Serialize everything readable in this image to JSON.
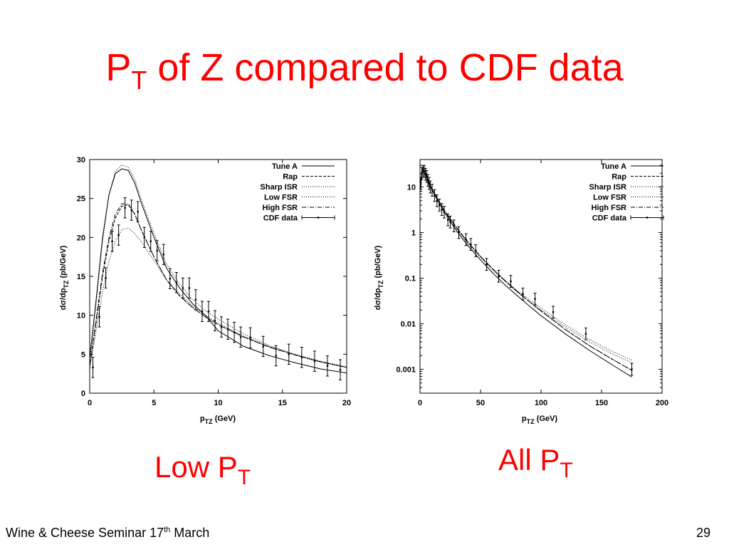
{
  "slide": {
    "title_main": "P",
    "title_sub": "T",
    "title_rest": " of Z compared to CDF data",
    "left_caption_main": "Low P",
    "left_caption_sub": "T",
    "right_caption_main": "All P",
    "right_caption_sub": "T",
    "footer_text": "Wine & Cheese Seminar 17",
    "footer_sup": "th",
    "footer_after": "  March",
    "page_number": "29",
    "title_color": "#ff0000"
  },
  "chart_data": [
    {
      "type": "line",
      "xlabel_main": "p",
      "xlabel_sub": "TZ",
      "xlabel_units": " (GeV)",
      "ylabel_main": "dσ/dp",
      "ylabel_sub": "TZ",
      "ylabel_units": " (pb/GeV)",
      "xlim": [
        0,
        20
      ],
      "ylim": [
        0,
        30
      ],
      "yscale": "linear",
      "xticks": [
        0,
        5,
        10,
        15,
        20
      ],
      "yticks": [
        0,
        5,
        10,
        15,
        20,
        25,
        30
      ],
      "grid": false,
      "legend_position": "top-right",
      "series": [
        {
          "name": "Tune A",
          "style": "solid",
          "x": [
            0,
            0.5,
            1,
            1.5,
            2,
            2.5,
            3,
            3.5,
            4,
            5,
            6,
            7,
            8,
            9,
            10,
            12,
            14,
            16,
            18,
            20
          ],
          "y": [
            4.5,
            12,
            20,
            25.5,
            28.2,
            28.8,
            28.6,
            27,
            24.5,
            20,
            16,
            13.5,
            11.5,
            10,
            8,
            6,
            4.8,
            3.9,
            3.1,
            2.6
          ]
        },
        {
          "name": "Rap",
          "style": "dashed",
          "x": [
            0,
            0.5,
            1,
            1.5,
            2,
            2.5,
            3,
            3.5,
            4,
            5,
            6,
            7,
            8,
            9,
            10,
            12,
            14,
            16,
            18,
            20
          ],
          "y": [
            3.5,
            9,
            15,
            19.5,
            22.5,
            24,
            24.2,
            23,
            21,
            17.5,
            14.5,
            12.5,
            11,
            9.8,
            8.8,
            7.2,
            5.9,
            4.9,
            4,
            3.3
          ]
        },
        {
          "name": "Sharp ISR",
          "style": "dotted",
          "x": [
            0,
            0.5,
            1,
            1.5,
            2,
            2.5,
            3,
            3.5,
            4,
            5,
            6,
            7,
            8,
            9,
            10,
            12,
            14,
            16,
            18,
            20
          ],
          "y": [
            4.2,
            11.5,
            19.5,
            25.5,
            28.5,
            29.3,
            29,
            27.5,
            25,
            20.5,
            16.5,
            14,
            12,
            10.6,
            9.5,
            7.6,
            6.1,
            5,
            4.1,
            3.4
          ]
        },
        {
          "name": "Low FSR",
          "style": "dotted",
          "x": [
            0,
            0.5,
            1,
            1.5,
            2,
            2.5,
            3,
            3.5,
            4,
            5,
            6,
            7,
            8,
            9,
            10,
            12,
            14,
            16,
            18,
            20
          ],
          "y": [
            3,
            8,
            13,
            17,
            19.5,
            21,
            21.2,
            20.5,
            19.5,
            17,
            14.5,
            12.8,
            11.2,
            10,
            9,
            7.3,
            6,
            4.9,
            4,
            3.3
          ]
        },
        {
          "name": "High FSR",
          "style": "dashdot",
          "x": [
            0,
            0.5,
            1,
            1.5,
            2,
            2.5,
            3,
            3.5,
            4,
            5,
            6,
            7,
            8,
            9,
            10,
            12,
            14,
            16,
            18,
            20
          ],
          "y": [
            3.6,
            9.5,
            15.5,
            20,
            23,
            24.3,
            24.3,
            23,
            21,
            17.5,
            14.5,
            12.5,
            11,
            9.8,
            8.8,
            7.2,
            5.9,
            4.9,
            4,
            3.3
          ]
        },
        {
          "name": "CDF data",
          "style": "points",
          "x": [
            0.25,
            0.75,
            1.25,
            1.75,
            2.25,
            2.75,
            3.25,
            3.75,
            4.25,
            4.75,
            5.25,
            5.75,
            6.25,
            6.75,
            7.25,
            7.75,
            8.25,
            8.75,
            9.25,
            9.75,
            10.25,
            10.75,
            11.25,
            11.75,
            12.5,
            13.5,
            14.5,
            15.5,
            16.5,
            17.5,
            18.5,
            19.5
          ],
          "y": [
            3.3,
            9.8,
            14.8,
            19.5,
            20.3,
            23.8,
            23.5,
            23.3,
            20,
            19.5,
            18.3,
            17.8,
            14.7,
            14.2,
            13.5,
            13.5,
            12,
            10.5,
            10.5,
            9.3,
            8.5,
            8.2,
            7.8,
            7.2,
            7.1,
            6,
            4.8,
            5,
            4.6,
            4.1,
            3.5,
            3
          ]
        }
      ]
    },
    {
      "type": "line",
      "xlabel_main": "p",
      "xlabel_sub": "TZ",
      "xlabel_units": " (GeV)",
      "ylabel_main": "dσ/dp",
      "ylabel_sub": "TZ",
      "ylabel_units": " (pb/GeV)",
      "xlim": [
        0,
        200
      ],
      "ylim": [
        0.0003,
        40
      ],
      "yscale": "log",
      "xticks": [
        0,
        50,
        100,
        150,
        200
      ],
      "yticks": [
        0.001,
        0.01,
        0.1,
        1,
        10
      ],
      "ytick_labels": [
        "0.001",
        "0.01",
        "0.1",
        "1",
        "10"
      ],
      "grid": false,
      "legend_position": "top-right",
      "series": [
        {
          "name": "Tune A",
          "style": "solid",
          "x": [
            0.5,
            1.5,
            2.5,
            4,
            6,
            10,
            15,
            20,
            30,
            40,
            50,
            60,
            70,
            80,
            90,
            100,
            120,
            140,
            160,
            175
          ],
          "y": [
            10,
            22,
            27,
            22,
            15,
            8.5,
            4.8,
            2.8,
            1.1,
            0.5,
            0.25,
            0.13,
            0.072,
            0.042,
            0.025,
            0.015,
            0.006,
            0.0026,
            0.0012,
            0.00068
          ]
        },
        {
          "name": "Rap",
          "style": "dashed",
          "x": [
            0.5,
            1.5,
            2.5,
            4,
            6,
            10,
            15,
            20,
            30,
            40,
            50,
            60,
            70,
            80,
            90,
            100,
            120,
            140,
            160,
            175
          ],
          "y": [
            9,
            20,
            24,
            21,
            15,
            9,
            5.2,
            3.1,
            1.3,
            0.6,
            0.3,
            0.16,
            0.09,
            0.052,
            0.031,
            0.019,
            0.0075,
            0.0033,
            0.0016,
            0.00095
          ]
        },
        {
          "name": "Sharp ISR",
          "style": "dotted",
          "x": [
            0.5,
            1.5,
            2.5,
            4,
            6,
            10,
            15,
            20,
            30,
            40,
            50,
            60,
            70,
            80,
            90,
            100,
            120,
            140,
            160,
            175
          ],
          "y": [
            10,
            22,
            28,
            23,
            16,
            9,
            5,
            3,
            1.2,
            0.55,
            0.28,
            0.15,
            0.085,
            0.05,
            0.031,
            0.02,
            0.0085,
            0.004,
            0.0021,
            0.0014
          ]
        },
        {
          "name": "Low FSR",
          "style": "dotted",
          "x": [
            0.5,
            1.5,
            2.5,
            4,
            6,
            10,
            15,
            20,
            30,
            40,
            50,
            60,
            70,
            80,
            90,
            100,
            120,
            140,
            160,
            175
          ],
          "y": [
            8,
            17,
            21,
            19,
            14,
            8.5,
            5,
            3,
            1.25,
            0.58,
            0.3,
            0.16,
            0.09,
            0.054,
            0.034,
            0.022,
            0.0095,
            0.0045,
            0.0024,
            0.0016
          ]
        },
        {
          "name": "High FSR",
          "style": "dashdot",
          "x": [
            0.5,
            1.5,
            2.5,
            4,
            6,
            10,
            15,
            20,
            30,
            40,
            50,
            60,
            70,
            80,
            90,
            100,
            120,
            140,
            160,
            175
          ],
          "y": [
            9,
            20,
            24,
            21,
            15,
            9,
            5.2,
            3.1,
            1.3,
            0.6,
            0.3,
            0.16,
            0.09,
            0.052,
            0.031,
            0.019,
            0.0075,
            0.0033,
            0.0016,
            0.00095
          ]
        },
        {
          "name": "CDF data",
          "style": "points",
          "x": [
            0.5,
            1.5,
            2.5,
            3.5,
            4.5,
            5.5,
            6.5,
            7.5,
            8.5,
            10,
            12,
            14,
            16,
            18,
            20,
            23,
            25,
            28,
            32,
            38,
            42,
            46,
            55,
            65,
            75,
            85,
            95,
            110,
            137,
            175
          ],
          "y": [
            12,
            20,
            22,
            22,
            19,
            17,
            14,
            12,
            10,
            8.5,
            6.5,
            5,
            4,
            3.2,
            2.8,
            1.9,
            1.7,
            1.4,
            1,
            0.7,
            0.55,
            0.4,
            0.2,
            0.11,
            0.085,
            0.045,
            0.035,
            0.018,
            0.006,
            0.001
          ]
        }
      ]
    }
  ]
}
